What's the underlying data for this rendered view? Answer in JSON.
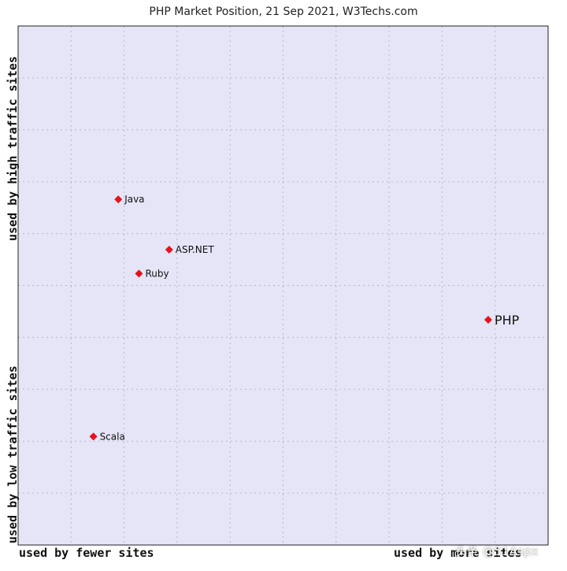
{
  "title": "PHP Market Position, 21 Sep 2021, W3Techs.com",
  "axis_labels": {
    "y_high": "used by high traffic sites",
    "y_low": "used by low traffic sites",
    "x_fewer": "used by fewer sites",
    "x_more": "used by more sites"
  },
  "watermark": "头条 @51Aspx",
  "colors": {
    "plot_background": "#e5e5f7",
    "grid": "#b8b8c8",
    "border": "#222222",
    "point": "#e8121a"
  },
  "chart_data": {
    "type": "scatter",
    "title": "PHP Market Position, 21 Sep 2021, W3Techs.com",
    "xlabel": "used by fewer sites / used by more sites",
    "ylabel": "used by low traffic sites / used by high traffic sites",
    "xlim": [
      0,
      10
    ],
    "ylim": [
      0,
      10
    ],
    "grid": true,
    "points": [
      {
        "label": "Java",
        "x": 1.89,
        "y": 6.66,
        "highlight": false
      },
      {
        "label": "ASP.NET",
        "x": 2.85,
        "y": 5.69,
        "highlight": false
      },
      {
        "label": "Ruby",
        "x": 2.28,
        "y": 5.23,
        "highlight": false
      },
      {
        "label": "PHP",
        "x": 8.87,
        "y": 4.34,
        "highlight": true
      },
      {
        "label": "Scala",
        "x": 1.42,
        "y": 2.09,
        "highlight": false
      }
    ]
  }
}
